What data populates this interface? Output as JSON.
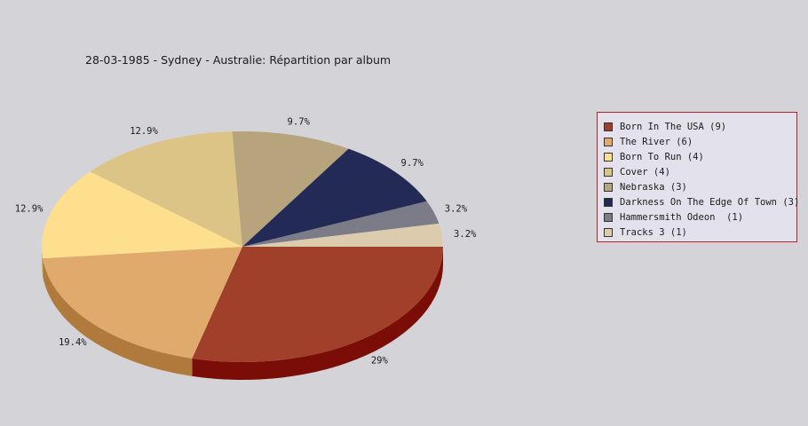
{
  "chart_data": {
    "type": "pie",
    "style": "3d",
    "title": "28-03-1985 - Sydney - Australie:  Répartition par album",
    "slices": [
      {
        "label": "Born In The USA",
        "count": 9,
        "percent_label": "29%",
        "color": "#a0402a",
        "side_color": "#7a0d06"
      },
      {
        "label": "The River",
        "count": 6,
        "percent_label": "19.4%",
        "color": "#e0aa6c",
        "side_color": "#b07a3c"
      },
      {
        "label": "Born To Run",
        "count": 4,
        "percent_label": "12.9%",
        "color": "#fedf8e",
        "side_color": "#cbb060"
      },
      {
        "label": "Cover",
        "count": 4,
        "percent_label": "12.9%",
        "color": "#dcc487",
        "side_color": "#b09a60"
      },
      {
        "label": "Nebraska",
        "count": 3,
        "percent_label": "9.7%",
        "color": "#b7a47c",
        "side_color": "#8f7d58"
      },
      {
        "label": "Darkness On The Edge Of Town",
        "count": 3,
        "percent_label": "9.7%",
        "color": "#222a55",
        "side_color": "#141a38"
      },
      {
        "label": "Hammersmith Odeon ",
        "count": 1,
        "percent_label": "3.2%",
        "color": "#7c7c88",
        "side_color": "#5a5a64"
      },
      {
        "label": "Tracks 3",
        "count": 1,
        "percent_label": "3.2%",
        "color": "#dccbad",
        "side_color": "#b3a384"
      }
    ],
    "legend_position": "right"
  },
  "colors": {
    "background": "#d4d3d8",
    "legend_background": "#e3e2ec",
    "legend_border": "#b7252a"
  }
}
